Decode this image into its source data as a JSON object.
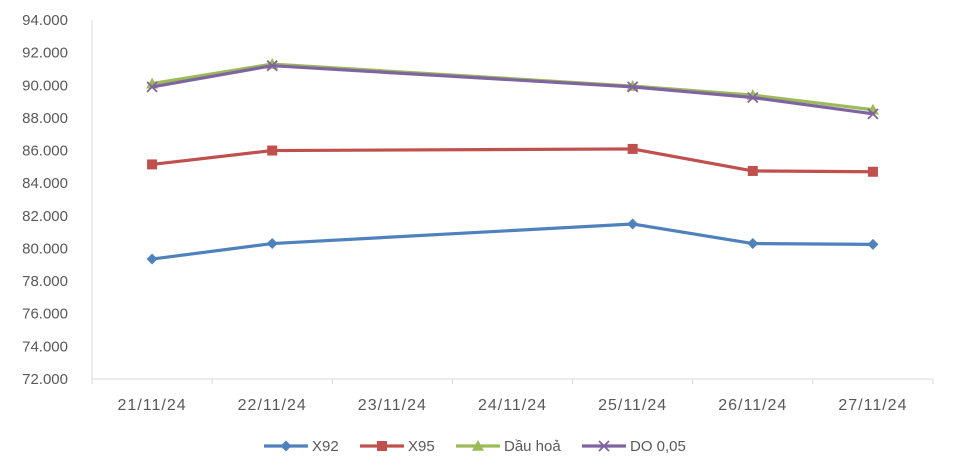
{
  "chart_data": {
    "type": "line",
    "title": "",
    "xlabel": "",
    "ylabel": "",
    "categories": [
      "21/11/24",
      "22/11/24",
      "23/11/24",
      "24/11/24",
      "25/11/24",
      "26/11/24",
      "27/11/24"
    ],
    "y_ticks": [
      "72.000",
      "74.000",
      "76.000",
      "78.000",
      "80.000",
      "82.000",
      "84.000",
      "86.000",
      "88.000",
      "90.000",
      "92.000",
      "94.000"
    ],
    "ylim": [
      72000,
      94000
    ],
    "grid": false,
    "legend_position": "bottom",
    "series": [
      {
        "name": "X92",
        "color": "#4F81BD",
        "marker": "diamond",
        "points": [
          [
            0,
            79350
          ],
          [
            1,
            80300
          ],
          [
            4,
            81500
          ],
          [
            5,
            80300
          ],
          [
            6,
            80250
          ]
        ]
      },
      {
        "name": "X95",
        "color": "#C0504D",
        "marker": "square",
        "points": [
          [
            0,
            85150
          ],
          [
            1,
            86000
          ],
          [
            4,
            86100
          ],
          [
            5,
            84750
          ],
          [
            6,
            84700
          ]
        ]
      },
      {
        "name": "Dầu hoả",
        "color": "#9BBB59",
        "marker": "triangle",
        "points": [
          [
            0,
            90100
          ],
          [
            1,
            91300
          ],
          [
            4,
            89950
          ],
          [
            5,
            89400
          ],
          [
            6,
            88500
          ]
        ]
      },
      {
        "name": "DO 0,05",
        "color": "#8064A2",
        "marker": "x",
        "points": [
          [
            0,
            89900
          ],
          [
            1,
            91200
          ],
          [
            4,
            89900
          ],
          [
            5,
            89250
          ],
          [
            6,
            88250
          ]
        ]
      }
    ]
  }
}
